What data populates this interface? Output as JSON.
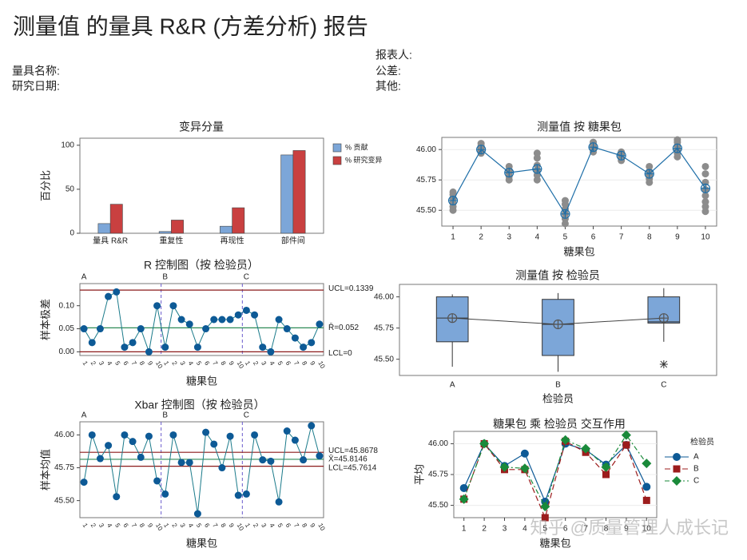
{
  "header": {
    "title": "测量值 的量具 R&R (方差分析) 报告",
    "gage_name": "量具名称:",
    "study_date": "研究日期:",
    "reported_by": "报表人:",
    "tolerance": "公差:",
    "misc": "其他:"
  },
  "watermark": "知乎 @质量管理人成长记",
  "chart_data": [
    {
      "type": "bar",
      "title": "变异分量",
      "ylabel": "百分比",
      "categories": [
        "量具 R&R",
        "重复性",
        "再现性",
        "部件间"
      ],
      "series": [
        {
          "name": "% 贡献",
          "color": "#7ca6d8",
          "values": [
            11,
            2,
            8,
            89
          ]
        },
        {
          "name": "% 研究变异",
          "color": "#c94040",
          "values": [
            33,
            15,
            29,
            94
          ]
        }
      ],
      "ylim": [
        0,
        108
      ],
      "yticks": [
        0,
        50,
        100
      ],
      "grid": false,
      "legend": "right"
    },
    {
      "type": "scatter-mean",
      "title": "测量值 按 糖果包",
      "xlabel": "糖果包",
      "x": [
        1,
        2,
        3,
        4,
        5,
        6,
        7,
        8,
        9,
        10
      ],
      "points": [
        [
          45.5,
          45.53,
          45.56,
          45.6,
          45.63,
          45.65
        ],
        [
          45.97,
          45.99,
          46.01,
          46.03,
          46.05
        ],
        [
          45.75,
          45.78,
          45.81,
          45.83,
          45.86
        ],
        [
          45.75,
          45.79,
          45.83,
          45.87,
          45.93,
          45.97
        ],
        [
          45.39,
          45.43,
          45.47,
          45.51,
          45.55,
          45.58
        ],
        [
          45.98,
          46.0,
          46.02,
          46.04,
          46.06
        ],
        [
          45.91,
          45.93,
          45.96,
          45.98
        ],
        [
          45.73,
          45.76,
          45.79,
          45.82,
          45.86
        ],
        [
          45.94,
          45.97,
          46.0,
          46.03,
          46.06,
          46.08
        ],
        [
          45.49,
          45.53,
          45.57,
          45.62,
          45.67,
          45.73,
          45.8,
          45.86
        ]
      ],
      "values": [
        45.58,
        46.0,
        45.81,
        45.84,
        45.47,
        46.02,
        45.95,
        45.8,
        46.01,
        45.68
      ],
      "point_color": "#8c8c8c",
      "color": "#1f6fa8",
      "xlim": [
        0.6,
        10.4
      ],
      "xticks": [
        1,
        2,
        3,
        4,
        5,
        6,
        7,
        8,
        9,
        10
      ],
      "ylim": [
        45.37,
        46.1
      ],
      "yticks": [
        {
          "value": 45.5,
          "label": "45.50"
        },
        {
          "value": 45.75,
          "label": "45.75"
        },
        {
          "value": 46,
          "label": "46.00"
        }
      ],
      "grid": true
    },
    {
      "type": "control",
      "title": "R 控制图（按 检验员）",
      "ylabel": "样本极差",
      "xlabel": "糖果包",
      "groups": [
        "A",
        "B",
        "C"
      ],
      "categories": [
        1,
        2,
        3,
        4,
        5,
        6,
        7,
        8,
        9,
        10,
        1,
        2,
        3,
        4,
        5,
        6,
        7,
        8,
        9,
        10,
        1,
        2,
        3,
        4,
        5,
        6,
        7,
        8,
        9,
        10
      ],
      "values": [
        0.05,
        0.02,
        0.05,
        0.12,
        0.13,
        0.01,
        0.02,
        0.05,
        0.0,
        0.1,
        0.01,
        0.1,
        0.07,
        0.06,
        0.01,
        0.05,
        0.07,
        0.07,
        0.07,
        0.08,
        0.09,
        0.08,
        0.01,
        0.0,
        0.07,
        0.05,
        0.03,
        0.01,
        0.02,
        0.06
      ],
      "color": "#0d5a96",
      "line_color": "#1a7a8a",
      "center_color": "#2e8b57",
      "limit_color": "#8b1a1a",
      "limits": [
        {
          "value": 0.1339,
          "label": "UCL=0.1339"
        },
        {
          "value": 0.052,
          "label": "R̄=0.052"
        },
        {
          "value": 0,
          "label": "LCL=0"
        }
      ],
      "ylim": [
        -0.008,
        0.148
      ],
      "yticks": [
        {
          "value": 0,
          "label": "0.00"
        },
        {
          "value": 0.05,
          "label": "0.05"
        },
        {
          "value": 0.1,
          "label": "0.10"
        }
      ]
    },
    {
      "type": "box",
      "title": "测量值 按 检验员",
      "xlabel": "检验员",
      "categories": [
        "A",
        "B",
        "C"
      ],
      "boxes": [
        {
          "whisker_low": 45.44,
          "q1": 45.64,
          "median": 45.83,
          "q3": 46.0,
          "whisker_high": 46.02,
          "mean": 45.83
        },
        {
          "whisker_low": 45.4,
          "q1": 45.53,
          "median": 45.78,
          "q3": 45.98,
          "whisker_high": 46.03,
          "mean": 45.78
        },
        {
          "whisker_low": 45.64,
          "q1": 45.79,
          "median": 45.8,
          "q3": 46.0,
          "whisker_high": 46.07,
          "mean": 45.83,
          "outliers": [
            45.46
          ]
        }
      ],
      "color": "#7ca6d8",
      "ylim": [
        45.37,
        46.1
      ],
      "yticks": [
        {
          "value": 45.5,
          "label": "45.50"
        },
        {
          "value": 45.75,
          "label": "45.75"
        },
        {
          "value": 46,
          "label": "46.00"
        }
      ]
    },
    {
      "type": "control",
      "title": "Xbar 控制图（按 检验员）",
      "ylabel": "样本均值",
      "xlabel": "糖果包",
      "groups": [
        "A",
        "B",
        "C"
      ],
      "categories": [
        1,
        2,
        3,
        4,
        5,
        6,
        7,
        8,
        9,
        10,
        1,
        2,
        3,
        4,
        5,
        6,
        7,
        8,
        9,
        10,
        1,
        2,
        3,
        4,
        5,
        6,
        7,
        8,
        9,
        10
      ],
      "values": [
        45.64,
        46.0,
        45.82,
        45.92,
        45.53,
        46.0,
        45.95,
        45.83,
        45.99,
        45.65,
        45.55,
        46.0,
        45.79,
        45.79,
        45.4,
        46.02,
        45.93,
        45.75,
        45.99,
        45.54,
        45.55,
        46.0,
        45.81,
        45.8,
        45.49,
        46.03,
        45.96,
        45.81,
        46.07,
        45.84
      ],
      "color": "#0d5a96",
      "line_color": "#1a7a8a",
      "center_color": "#2e8b57",
      "limit_color": "#8b1a1a",
      "limits": [
        {
          "value": 45.8678,
          "label": "UCL=45.8678"
        },
        {
          "value": 45.8146,
          "label": "X̄=45.8146"
        },
        {
          "value": 45.7614,
          "label": "LCL=45.7614"
        }
      ],
      "ylim": [
        45.37,
        46.1
      ],
      "yticks": [
        {
          "value": 45.5,
          "label": "45.50"
        },
        {
          "value": 45.75,
          "label": "45.75"
        },
        {
          "value": 46,
          "label": "46.00"
        }
      ]
    },
    {
      "type": "line",
      "title": "糖果包 乘 检验员 交互作用",
      "ylabel": "平均",
      "xlabel": "糖果包",
      "legend_title": "检验员",
      "x": [
        1,
        2,
        3,
        4,
        5,
        6,
        7,
        8,
        9,
        10
      ],
      "series": [
        {
          "name": "A",
          "color": "#0d5a96",
          "marker": "circle",
          "line_style": "solid",
          "values": [
            45.64,
            46.0,
            45.82,
            45.92,
            45.53,
            46.0,
            45.95,
            45.83,
            45.99,
            45.65
          ]
        },
        {
          "name": "B",
          "color": "#9c1c1c",
          "marker": "square",
          "line_style": "dashed",
          "values": [
            45.55,
            46.0,
            45.79,
            45.79,
            45.4,
            46.02,
            45.93,
            45.75,
            45.99,
            45.54
          ]
        },
        {
          "name": "C",
          "color": "#1a8a3a",
          "marker": "diamond",
          "line_style": "dashdot",
          "values": [
            45.55,
            46.0,
            45.81,
            45.8,
            45.49,
            46.03,
            45.96,
            45.81,
            46.07,
            45.84
          ]
        }
      ],
      "xlim": [
        0.5,
        10.5
      ],
      "xticks": [
        1,
        2,
        3,
        4,
        5,
        6,
        7,
        8,
        9,
        10
      ],
      "ylim": [
        45.4,
        46.1
      ],
      "yticks": [
        {
          "value": 45.5,
          "label": "45.50"
        },
        {
          "value": 45.75,
          "label": "45.75"
        },
        {
          "value": 46,
          "label": "46.00"
        }
      ],
      "grid": true
    }
  ]
}
